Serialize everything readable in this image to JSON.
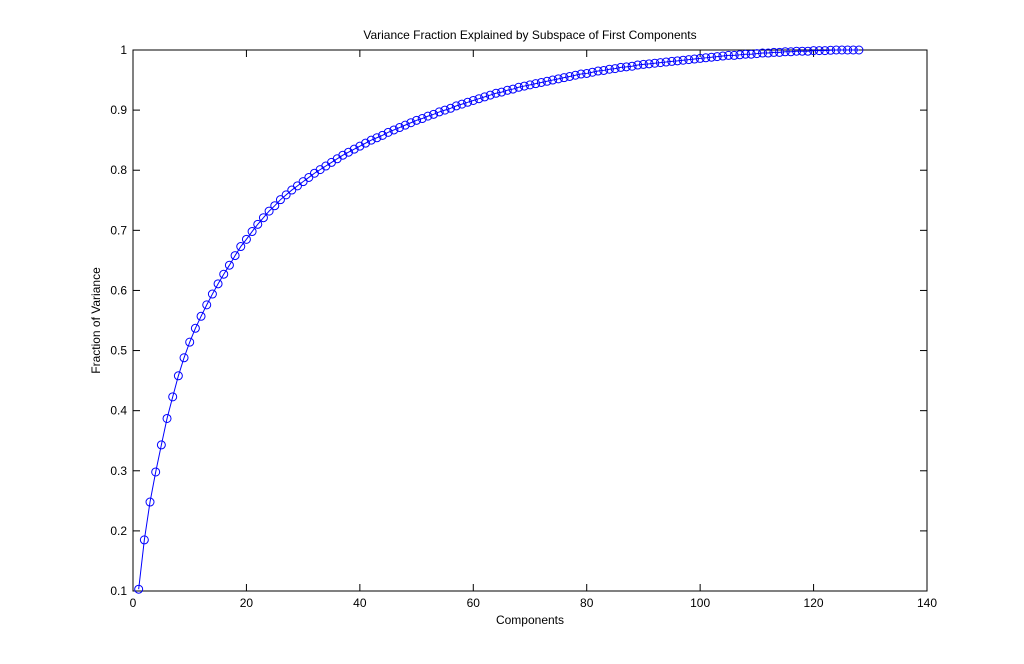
{
  "chart_data": {
    "type": "line",
    "title": "Variance Fraction Explained by Subspace of First Components",
    "xlabel": "Components",
    "ylabel": "Fraction of Variance",
    "xlim": [
      0,
      140
    ],
    "ylim": [
      0.1,
      1
    ],
    "xticks": [
      0,
      20,
      40,
      60,
      80,
      100,
      120,
      140
    ],
    "yticks": [
      0.1,
      0.2,
      0.3,
      0.4,
      0.5,
      0.6,
      0.7,
      0.8,
      0.9,
      1
    ],
    "ytick_labels": [
      "0.1",
      "0.2",
      "0.3",
      "0.4",
      "0.5",
      "0.6",
      "0.7",
      "0.8",
      "0.9",
      "1"
    ],
    "grid": false,
    "marker": "circle",
    "line_color": "#0000ff",
    "series": [
      {
        "x": [
          1,
          2,
          3,
          4,
          5,
          6,
          7,
          8,
          9,
          10,
          11,
          12,
          13,
          14,
          15,
          16,
          17,
          18,
          19,
          20,
          21,
          22,
          23,
          24,
          25,
          26,
          27,
          28,
          29,
          30,
          31,
          32,
          33,
          34,
          35,
          36,
          37,
          38,
          39,
          40,
          41,
          42,
          43,
          44,
          45,
          46,
          47,
          48,
          49,
          50,
          51,
          52,
          53,
          54,
          55,
          56,
          57,
          58,
          59,
          60,
          61,
          62,
          63,
          64,
          65,
          66,
          67,
          68,
          69,
          70,
          71,
          72,
          73,
          74,
          75,
          76,
          77,
          78,
          79,
          80,
          81,
          82,
          83,
          84,
          85,
          86,
          87,
          88,
          89,
          90,
          91,
          92,
          93,
          94,
          95,
          96,
          97,
          98,
          99,
          100,
          101,
          102,
          103,
          104,
          105,
          106,
          107,
          108,
          109,
          110,
          111,
          112,
          113,
          114,
          115,
          116,
          117,
          118,
          119,
          120,
          121,
          122,
          123,
          124,
          125,
          126,
          127,
          128
        ],
        "values": [
          0.103,
          0.185,
          0.248,
          0.298,
          0.343,
          0.387,
          0.423,
          0.458,
          0.488,
          0.514,
          0.537,
          0.557,
          0.576,
          0.594,
          0.611,
          0.627,
          0.642,
          0.658,
          0.673,
          0.685,
          0.698,
          0.71,
          0.721,
          0.732,
          0.741,
          0.751,
          0.759,
          0.767,
          0.774,
          0.781,
          0.788,
          0.795,
          0.801,
          0.807,
          0.813,
          0.819,
          0.825,
          0.83,
          0.835,
          0.84,
          0.845,
          0.85,
          0.854,
          0.858,
          0.863,
          0.867,
          0.871,
          0.875,
          0.879,
          0.883,
          0.886,
          0.89,
          0.893,
          0.897,
          0.9,
          0.903,
          0.907,
          0.91,
          0.913,
          0.916,
          0.919,
          0.922,
          0.925,
          0.928,
          0.93,
          0.933,
          0.935,
          0.938,
          0.94,
          0.942,
          0.944,
          0.946,
          0.948,
          0.95,
          0.952,
          0.954,
          0.956,
          0.958,
          0.96,
          0.961,
          0.963,
          0.965,
          0.966,
          0.968,
          0.969,
          0.971,
          0.972,
          0.973,
          0.975,
          0.976,
          0.977,
          0.978,
          0.979,
          0.98,
          0.981,
          0.982,
          0.983,
          0.984,
          0.985,
          0.986,
          0.987,
          0.988,
          0.989,
          0.99,
          0.991,
          0.991,
          0.992,
          0.993,
          0.993,
          0.994,
          0.995,
          0.995,
          0.996,
          0.996,
          0.997,
          0.997,
          0.998,
          0.998,
          0.998,
          0.999,
          0.999,
          0.999,
          0.9995,
          1.0,
          1.0,
          1.0,
          1.0,
          1.0
        ]
      }
    ]
  }
}
